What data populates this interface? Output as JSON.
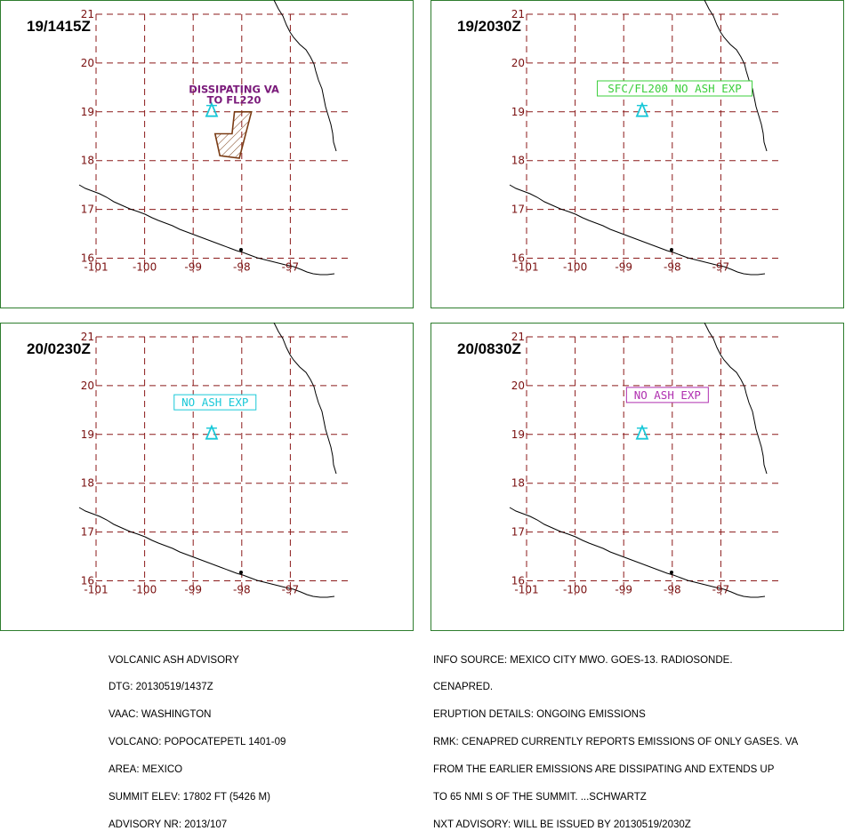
{
  "colors": {
    "frame": "#2e7d2e",
    "grid": "#8b1a1a",
    "tick_label": "#7a1010",
    "coast": "#000000",
    "volcano": "#19c8d8",
    "ash_outline": "#7a3b14"
  },
  "axes": {
    "lon_ticks": [
      "-101",
      "-100",
      "-99",
      "-98",
      "-97"
    ],
    "lat_ticks": [
      "21",
      "20",
      "19",
      "18",
      "17",
      "16"
    ]
  },
  "volcano": {
    "name": "POPOCATEPETL",
    "lat": 19.02,
    "lon": -98.62,
    "icon": "volcano-triangle-icon"
  },
  "panels": [
    {
      "id": "p1",
      "time": "19/1415Z",
      "label_lines": [
        "DISSIPATING VA",
        "TO FL220"
      ],
      "label_color": "#7a1a7a",
      "label_boxed": false,
      "ash_polygon": [
        [
          -98.15,
          19.0
        ],
        [
          -97.8,
          19.0
        ],
        [
          -98.05,
          18.05
        ],
        [
          -98.45,
          18.1
        ],
        [
          -98.55,
          18.55
        ],
        [
          -98.2,
          18.55
        ]
      ]
    },
    {
      "id": "p2",
      "time": "19/2030Z",
      "label_lines": [
        "SFC/FL200 NO ASH EXP"
      ],
      "label_color": "#3ccf3c",
      "label_boxed": true,
      "ash_polygon": []
    },
    {
      "id": "p3",
      "time": "20/0230Z",
      "label_lines": [
        "NO ASH EXP"
      ],
      "label_color": "#19c8d8",
      "label_boxed": true,
      "ash_polygon": []
    },
    {
      "id": "p4",
      "time": "20/0830Z",
      "label_lines": [
        "NO ASH EXP"
      ],
      "label_color": "#b030b0",
      "label_boxed": true,
      "ash_polygon": []
    }
  ],
  "advisory_left": [
    "VOLCANIC ASH ADVISORY",
    "DTG: 20130519/1437Z",
    "VAAC: WASHINGTON",
    "VOLCANO: POPOCATEPETL 1401-09",
    "AREA: MEXICO",
    "SUMMIT ELEV: 17802 FT (5426 M)",
    "ADVISORY NR: 2013/107"
  ],
  "advisory_right": [
    "INFO SOURCE: MEXICO CITY MWO. GOES-13. RADIOSONDE.",
    "CENAPRED.",
    "ERUPTION DETAILS: ONGOING EMISSIONS",
    "RMK: CENAPRED CURRENTLY REPORTS EMISSIONS OF ONLY GASES. VA",
    "FROM THE EARLIER EMISSIONS ARE DISSIPATING AND EXTENDS UP",
    "TO 65 NMI S OF THE SUMMIT. ...SCHWARTZ",
    "NXT ADVISORY: WILL BE ISSUED BY 20130519/2030Z"
  ]
}
